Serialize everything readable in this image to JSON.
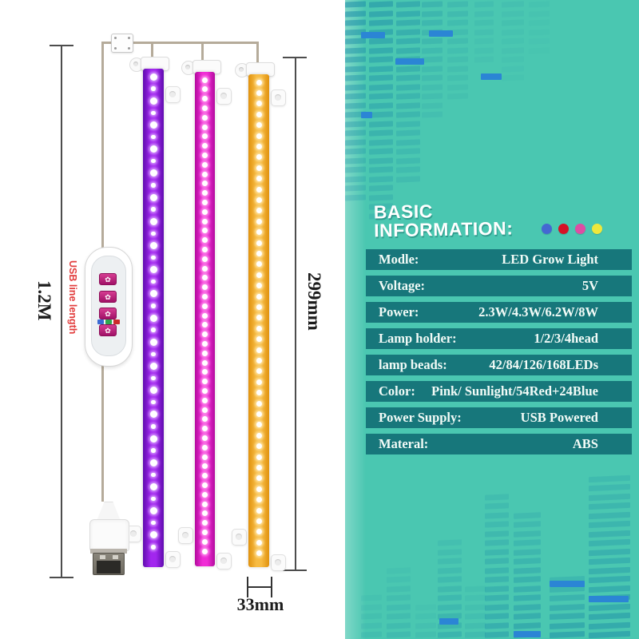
{
  "info_panel": {
    "title_line1": "BASIC",
    "title_line2": "INFORMATION:",
    "accent_dots": [
      {
        "name": "blue-dot",
        "color": "#4468d2"
      },
      {
        "name": "red-dot",
        "color": "#d61126"
      },
      {
        "name": "pink-dot",
        "color": "#dd4da4"
      },
      {
        "name": "yellow-dot",
        "color": "#efe83c"
      }
    ],
    "colors": {
      "panel_bg": "#4ac7b1",
      "row_bg": "#17777b",
      "row_text": "#f2fbf7",
      "eq_bar": "28,140,168",
      "eq_accent": "#2b85d5"
    },
    "specs": [
      {
        "label": "Modle:",
        "value": "LED Grow Light"
      },
      {
        "label": "Voltage:",
        "value": "5V"
      },
      {
        "label": "Power:",
        "value": "2.3W/4.3W/6.2W/8W"
      },
      {
        "label": "Lamp holder:",
        "value": "1/2/3/4head"
      },
      {
        "label": "lamp beads:",
        "value": "42/84/126/168LEDs"
      },
      {
        "label": "Color:",
        "value": "Pink/ Sunlight/54Red+24Blue"
      },
      {
        "label": "Power Supply:",
        "value": "USB Powered"
      },
      {
        "label": "Materal:",
        "value": "ABS"
      }
    ]
  },
  "product": {
    "dim_cable_length": "1.2M",
    "dim_cable_note": "USB line length",
    "dim_strip_length": "299mm",
    "dim_strip_width": "33mm",
    "controller_button_glyph": "✿",
    "strips": [
      {
        "name": "purple",
        "edge": "#5f0cae",
        "main": "#a226ee",
        "halo": "rgba(222,175,255,0.85)",
        "leds": 40,
        "pattern": "alternating"
      },
      {
        "name": "pink",
        "edge": "#b30b9d",
        "main": "#f02cd6",
        "halo": "rgba(255,170,240,0.85)",
        "leds": 51,
        "pattern": "uniform"
      },
      {
        "name": "sunlight",
        "edge": "#e0920e",
        "main": "#f7bb42",
        "halo": "rgba(255,232,175,0.90)",
        "leds": 45,
        "pattern": "uniform"
      }
    ],
    "indicator_squares": [
      "#3a6ad4",
      "#2ea84e",
      "#cc2b2b"
    ]
  }
}
